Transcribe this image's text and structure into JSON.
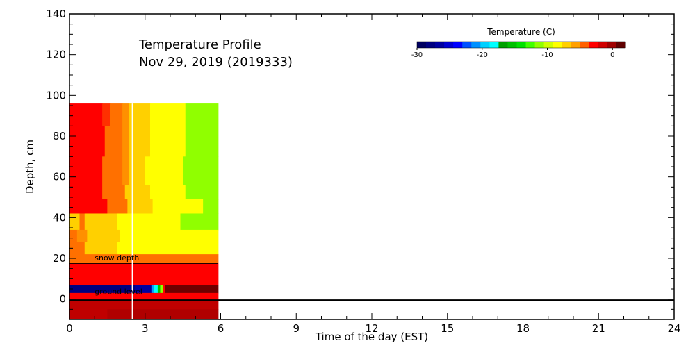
{
  "chart_data": {
    "type": "heatmap",
    "title": "Temperature Profile",
    "subtitle": "Nov 29, 2019 (2019333)",
    "xlabel": "Time of the day (EST)",
    "ylabel": "Depth, cm",
    "xlim": [
      0,
      24
    ],
    "ylim": [
      -10,
      140
    ],
    "x_ticks": [
      0,
      3,
      6,
      9,
      12,
      15,
      18,
      21,
      24
    ],
    "y_ticks": [
      0,
      20,
      40,
      60,
      80,
      100,
      120,
      140
    ],
    "x_tick_labels": [
      "0",
      "3",
      "6",
      "9",
      "12",
      "15",
      "18",
      "21",
      "24"
    ],
    "y_tick_labels": [
      "0",
      "20",
      "40",
      "60",
      "80",
      "100",
      "120",
      "140"
    ],
    "colorbar": {
      "title": "Temperature (C)",
      "range": [
        -30,
        2
      ],
      "ticks": [
        -30,
        -20,
        -10,
        0
      ],
      "tick_labels": [
        "-30",
        "-20",
        "-10",
        "0"
      ],
      "colors": [
        "#000060",
        "#000080",
        "#0000a0",
        "#0000d0",
        "#0000ff",
        "#0050ff",
        "#0090ff",
        "#00d0ff",
        "#00ffff",
        "#00a000",
        "#00c000",
        "#00e000",
        "#40ff00",
        "#90ff00",
        "#d0ff00",
        "#ffff00",
        "#ffd000",
        "#ffa000",
        "#ff6000",
        "#ff0000",
        "#d00000",
        "#a00000",
        "#600000"
      ]
    },
    "annotations": [
      {
        "text": "snow depth",
        "x": 1.0,
        "y": 19
      },
      {
        "text": "ground level",
        "x": 1.0,
        "y": 2.5
      }
    ],
    "reference_lines": [
      {
        "name": "snow depth",
        "y": 17.5,
        "x_range": [
          0,
          5.9
        ]
      },
      {
        "name": "ground level",
        "y": -0.5,
        "x_range": [
          0,
          24
        ]
      },
      {
        "name": "current time",
        "x": 2.5,
        "y_range": [
          -10,
          96
        ]
      }
    ],
    "profile": [
      {
        "y0": 85,
        "y1": 96,
        "cells": [
          [
            0,
            1.3,
            "#ff0000"
          ],
          [
            1.3,
            1.6,
            "#ff3000"
          ],
          [
            1.6,
            2.1,
            "#ff7000"
          ],
          [
            2.1,
            2.35,
            "#ff9000"
          ],
          [
            2.35,
            3.2,
            "#ffd000"
          ],
          [
            3.2,
            4.6,
            "#ffff00"
          ],
          [
            4.6,
            5.9,
            "#90ff00"
          ]
        ]
      },
      {
        "y0": 70,
        "y1": 85,
        "cells": [
          [
            0,
            1.4,
            "#ff0000"
          ],
          [
            1.4,
            2.1,
            "#ff7000"
          ],
          [
            2.1,
            2.35,
            "#ff9000"
          ],
          [
            2.35,
            3.2,
            "#ffd000"
          ],
          [
            3.2,
            4.6,
            "#ffff00"
          ],
          [
            4.6,
            5.9,
            "#90ff00"
          ]
        ]
      },
      {
        "y0": 56,
        "y1": 70,
        "cells": [
          [
            0,
            1.3,
            "#ff0000"
          ],
          [
            1.3,
            2.1,
            "#ff7000"
          ],
          [
            2.1,
            2.35,
            "#ff9000"
          ],
          [
            2.35,
            3.0,
            "#ffd000"
          ],
          [
            3.0,
            4.5,
            "#ffff00"
          ],
          [
            4.5,
            5.9,
            "#90ff00"
          ]
        ]
      },
      {
        "y0": 49,
        "y1": 56,
        "cells": [
          [
            0,
            1.3,
            "#ff0000"
          ],
          [
            1.3,
            2.2,
            "#ff7000"
          ],
          [
            2.2,
            3.2,
            "#ffd000"
          ],
          [
            3.2,
            4.6,
            "#ffff00"
          ],
          [
            4.6,
            5.9,
            "#90ff00"
          ]
        ]
      },
      {
        "y0": 42,
        "y1": 49,
        "cells": [
          [
            0,
            1.5,
            "#ff0000"
          ],
          [
            1.5,
            2.3,
            "#ff7000"
          ],
          [
            2.3,
            3.3,
            "#ffd000"
          ],
          [
            3.3,
            5.3,
            "#ffff00"
          ],
          [
            5.3,
            5.9,
            "#90ff00"
          ]
        ]
      },
      {
        "y0": 34,
        "y1": 42,
        "cells": [
          [
            0,
            0.4,
            "#ffd000"
          ],
          [
            0.4,
            0.6,
            "#ff7000"
          ],
          [
            0.6,
            1.9,
            "#ffd000"
          ],
          [
            1.9,
            4.4,
            "#ffff00"
          ],
          [
            4.4,
            5.9,
            "#90ff00"
          ]
        ]
      },
      {
        "y0": 28,
        "y1": 34,
        "cells": [
          [
            0,
            0.3,
            "#ff7000"
          ],
          [
            0.3,
            0.7,
            "#ff9000"
          ],
          [
            0.7,
            2.0,
            "#ffd000"
          ],
          [
            2.0,
            5.9,
            "#ffff00"
          ]
        ]
      },
      {
        "y0": 22,
        "y1": 28,
        "cells": [
          [
            0,
            0.6,
            "#ff7000"
          ],
          [
            0.6,
            1.9,
            "#ffd000"
          ],
          [
            1.9,
            3.2,
            "#ffff00"
          ],
          [
            3.2,
            5.9,
            "#ffff00"
          ]
        ]
      },
      {
        "y0": 17.5,
        "y1": 22,
        "cells": [
          [
            0,
            5.9,
            "#ff7000"
          ]
        ]
      },
      {
        "y0": 7,
        "y1": 17.5,
        "cells": [
          [
            0,
            5.9,
            "#ff0000"
          ]
        ]
      },
      {
        "y0": 3,
        "y1": 7,
        "cells": [
          [
            0,
            2.6,
            "#000080"
          ],
          [
            2.6,
            3.25,
            "#0000a0"
          ],
          [
            3.25,
            3.35,
            "#00a0ff"
          ],
          [
            3.35,
            3.5,
            "#00ffff"
          ],
          [
            3.5,
            3.6,
            "#00c000"
          ],
          [
            3.6,
            3.7,
            "#90ff00"
          ],
          [
            3.7,
            3.8,
            "#ff0000"
          ],
          [
            3.8,
            5.9,
            "#700000"
          ]
        ]
      },
      {
        "y0": -1,
        "y1": 3,
        "cells": [
          [
            0,
            5.9,
            "#ff0000"
          ]
        ]
      },
      {
        "y0": -5,
        "y1": -1,
        "cells": [
          [
            0,
            5.9,
            "#c00000"
          ]
        ]
      },
      {
        "y0": -10,
        "y1": -5,
        "cells": [
          [
            0,
            1.5,
            "#c00000"
          ],
          [
            1.5,
            5.9,
            "#b00000"
          ]
        ]
      }
    ]
  }
}
